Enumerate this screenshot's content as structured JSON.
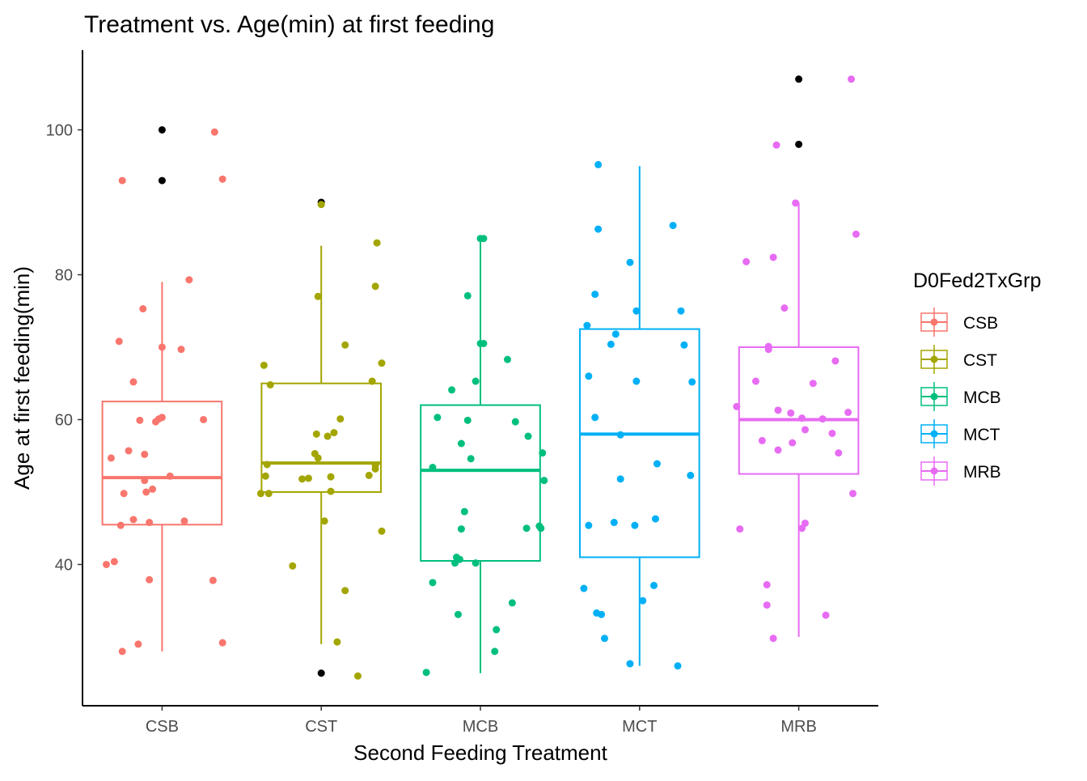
{
  "chart_data": {
    "type": "boxplot",
    "title": "Treatment vs. Age(min) at first feeding",
    "xlabel": "Second Feeding Treatment",
    "ylabel": "Age at first feeding(min)",
    "ylim": [
      20.5,
      111
    ],
    "yticks": [
      40,
      60,
      80,
      100
    ],
    "grid": false,
    "legend": {
      "title": "D0Fed2TxGrp",
      "placement": "right",
      "entries": [
        "CSB",
        "CST",
        "MCB",
        "MCT",
        "MRB"
      ]
    },
    "outlier_color": "#000000",
    "categories": [
      "CSB",
      "CST",
      "MCB",
      "MCT",
      "MRB"
    ],
    "series": [
      {
        "name": "CSB",
        "color": "#F8766D",
        "box": {
          "lower_whisker": 28,
          "q1": 45.5,
          "median": 52,
          "q3": 62.5,
          "upper_whisker": 79
        },
        "outliers": [
          93,
          100
        ],
        "points": [
          {
            "jitter": -0.25,
            "y": 93
          },
          {
            "jitter": -0.12,
            "y": 75.3
          },
          {
            "jitter": 0.17,
            "y": 79.3
          },
          {
            "jitter": -0.27,
            "y": 70.8
          },
          {
            "jitter": 0.0,
            "y": 70.0
          },
          {
            "jitter": 0.12,
            "y": 69.7
          },
          {
            "jitter": -0.18,
            "y": 65.2
          },
          {
            "jitter": -0.14,
            "y": 59.9
          },
          {
            "jitter": -0.04,
            "y": 59.7
          },
          {
            "jitter": -0.02,
            "y": 60.1
          },
          {
            "jitter": 0.0,
            "y": 60.3
          },
          {
            "jitter": 0.26,
            "y": 60.0
          },
          {
            "jitter": -0.21,
            "y": 55.7
          },
          {
            "jitter": -0.11,
            "y": 55.2
          },
          {
            "jitter": -0.32,
            "y": 54.7
          },
          {
            "jitter": 0.05,
            "y": 52.2
          },
          {
            "jitter": -0.11,
            "y": 51.6
          },
          {
            "jitter": -0.06,
            "y": 50.4
          },
          {
            "jitter": -0.1,
            "y": 50.0
          },
          {
            "jitter": -0.24,
            "y": 49.8
          },
          {
            "jitter": -0.18,
            "y": 46.2
          },
          {
            "jitter": -0.08,
            "y": 45.8
          },
          {
            "jitter": -0.26,
            "y": 45.4
          },
          {
            "jitter": 0.14,
            "y": 46.0
          },
          {
            "jitter": -0.3,
            "y": 40.4
          },
          {
            "jitter": -0.35,
            "y": 40.0
          },
          {
            "jitter": -0.08,
            "y": 37.9
          },
          {
            "jitter": 0.32,
            "y": 37.8
          },
          {
            "jitter": -0.15,
            "y": 29.0
          },
          {
            "jitter": 0.38,
            "y": 29.2
          },
          {
            "jitter": -0.25,
            "y": 28.0
          },
          {
            "jitter": 0.38,
            "y": 93.2
          },
          {
            "jitter": 0.33,
            "y": 99.7
          }
        ]
      },
      {
        "name": "CST",
        "color": "#A3A500",
        "box": {
          "lower_whisker": 29,
          "q1": 50,
          "median": 54,
          "q3": 65,
          "upper_whisker": 84
        },
        "outliers": [
          25,
          90
        ],
        "points": [
          {
            "jitter": 0.0,
            "y": 89.7
          },
          {
            "jitter": 0.35,
            "y": 84.4
          },
          {
            "jitter": 0.34,
            "y": 78.4
          },
          {
            "jitter": -0.02,
            "y": 77.0
          },
          {
            "jitter": 0.15,
            "y": 70.3
          },
          {
            "jitter": -0.36,
            "y": 67.5
          },
          {
            "jitter": 0.38,
            "y": 67.8
          },
          {
            "jitter": 0.32,
            "y": 65.3
          },
          {
            "jitter": -0.32,
            "y": 64.8
          },
          {
            "jitter": 0.12,
            "y": 60.1
          },
          {
            "jitter": -0.03,
            "y": 58.0
          },
          {
            "jitter": 0.04,
            "y": 57.7
          },
          {
            "jitter": 0.08,
            "y": 58.2
          },
          {
            "jitter": -0.04,
            "y": 55.3
          },
          {
            "jitter": -0.02,
            "y": 54.7
          },
          {
            "jitter": -0.34,
            "y": 53.8
          },
          {
            "jitter": 0.34,
            "y": 53.7
          },
          {
            "jitter": 0.34,
            "y": 53.2
          },
          {
            "jitter": -0.35,
            "y": 52.2
          },
          {
            "jitter": -0.12,
            "y": 51.8
          },
          {
            "jitter": -0.08,
            "y": 51.9
          },
          {
            "jitter": 0.06,
            "y": 52.1
          },
          {
            "jitter": 0.3,
            "y": 52.3
          },
          {
            "jitter": -0.38,
            "y": 49.8
          },
          {
            "jitter": -0.33,
            "y": 49.8
          },
          {
            "jitter": 0.06,
            "y": 50.1
          },
          {
            "jitter": 0.02,
            "y": 46.0
          },
          {
            "jitter": 0.38,
            "y": 44.6
          },
          {
            "jitter": -0.18,
            "y": 39.8
          },
          {
            "jitter": 0.15,
            "y": 36.4
          },
          {
            "jitter": 0.1,
            "y": 29.3
          },
          {
            "jitter": 0.23,
            "y": 24.6
          }
        ]
      },
      {
        "name": "MCB",
        "color": "#00BF7D",
        "box": {
          "lower_whisker": 25,
          "q1": 40.5,
          "median": 53,
          "q3": 62,
          "upper_whisker": 85
        },
        "outliers": [],
        "points": [
          {
            "jitter": 0.0,
            "y": 85.0
          },
          {
            "jitter": 0.02,
            "y": 85.0
          },
          {
            "jitter": -0.08,
            "y": 77.1
          },
          {
            "jitter": 0.0,
            "y": 70.5
          },
          {
            "jitter": 0.02,
            "y": 70.5
          },
          {
            "jitter": 0.17,
            "y": 68.3
          },
          {
            "jitter": -0.03,
            "y": 65.3
          },
          {
            "jitter": -0.18,
            "y": 64.1
          },
          {
            "jitter": -0.27,
            "y": 60.3
          },
          {
            "jitter": -0.08,
            "y": 59.9
          },
          {
            "jitter": 0.22,
            "y": 59.7
          },
          {
            "jitter": 0.3,
            "y": 57.7
          },
          {
            "jitter": -0.12,
            "y": 56.7
          },
          {
            "jitter": -0.06,
            "y": 54.6
          },
          {
            "jitter": 0.39,
            "y": 55.4
          },
          {
            "jitter": -0.3,
            "y": 53.4
          },
          {
            "jitter": 0.4,
            "y": 51.6
          },
          {
            "jitter": -0.1,
            "y": 47.3
          },
          {
            "jitter": 0.37,
            "y": 45.3
          },
          {
            "jitter": 0.38,
            "y": 45.0
          },
          {
            "jitter": 0.29,
            "y": 45.0
          },
          {
            "jitter": -0.12,
            "y": 44.9
          },
          {
            "jitter": -0.15,
            "y": 41.0
          },
          {
            "jitter": -0.13,
            "y": 40.7
          },
          {
            "jitter": -0.16,
            "y": 40.2
          },
          {
            "jitter": -0.03,
            "y": 40.2
          },
          {
            "jitter": -0.3,
            "y": 37.5
          },
          {
            "jitter": 0.2,
            "y": 34.7
          },
          {
            "jitter": -0.14,
            "y": 33.1
          },
          {
            "jitter": 0.1,
            "y": 31.0
          },
          {
            "jitter": 0.09,
            "y": 28.0
          },
          {
            "jitter": -0.34,
            "y": 25.1
          }
        ]
      },
      {
        "name": "MCT",
        "color": "#00B0F6",
        "box": {
          "lower_whisker": 26,
          "q1": 41,
          "median": 58,
          "q3": 72.5,
          "upper_whisker": 95
        },
        "outliers": [],
        "points": [
          {
            "jitter": -0.26,
            "y": 95.2
          },
          {
            "jitter": -0.26,
            "y": 86.3
          },
          {
            "jitter": 0.21,
            "y": 86.8
          },
          {
            "jitter": -0.06,
            "y": 81.7
          },
          {
            "jitter": -0.28,
            "y": 77.3
          },
          {
            "jitter": -0.02,
            "y": 75.0
          },
          {
            "jitter": 0.26,
            "y": 75.0
          },
          {
            "jitter": -0.33,
            "y": 73.0
          },
          {
            "jitter": -0.15,
            "y": 71.8
          },
          {
            "jitter": -0.18,
            "y": 70.4
          },
          {
            "jitter": 0.28,
            "y": 70.3
          },
          {
            "jitter": -0.32,
            "y": 66.0
          },
          {
            "jitter": -0.02,
            "y": 65.3
          },
          {
            "jitter": 0.33,
            "y": 65.2
          },
          {
            "jitter": -0.28,
            "y": 60.3
          },
          {
            "jitter": -0.12,
            "y": 57.9
          },
          {
            "jitter": 0.11,
            "y": 53.9
          },
          {
            "jitter": 0.32,
            "y": 52.3
          },
          {
            "jitter": -0.12,
            "y": 51.8
          },
          {
            "jitter": 0.1,
            "y": 46.3
          },
          {
            "jitter": -0.16,
            "y": 45.8
          },
          {
            "jitter": -0.03,
            "y": 45.4
          },
          {
            "jitter": -0.32,
            "y": 45.4
          },
          {
            "jitter": 0.09,
            "y": 37.1
          },
          {
            "jitter": -0.35,
            "y": 36.7
          },
          {
            "jitter": -0.27,
            "y": 33.3
          },
          {
            "jitter": -0.24,
            "y": 33.1
          },
          {
            "jitter": 0.02,
            "y": 35.0
          },
          {
            "jitter": -0.22,
            "y": 29.8
          },
          {
            "jitter": -0.06,
            "y": 26.3
          },
          {
            "jitter": 0.24,
            "y": 26.0
          }
        ]
      },
      {
        "name": "MRB",
        "color": "#E76BF3",
        "box": {
          "lower_whisker": 30,
          "q1": 52.5,
          "median": 60,
          "q3": 70,
          "upper_whisker": 90
        },
        "outliers": [
          98,
          107
        ],
        "points": [
          {
            "jitter": 0.33,
            "y": 107.0
          },
          {
            "jitter": -0.14,
            "y": 97.9
          },
          {
            "jitter": -0.02,
            "y": 89.9
          },
          {
            "jitter": 0.36,
            "y": 85.6
          },
          {
            "jitter": -0.33,
            "y": 81.8
          },
          {
            "jitter": -0.16,
            "y": 82.4
          },
          {
            "jitter": -0.09,
            "y": 75.4
          },
          {
            "jitter": -0.19,
            "y": 70.1
          },
          {
            "jitter": -0.19,
            "y": 69.7
          },
          {
            "jitter": -0.27,
            "y": 65.3
          },
          {
            "jitter": 0.09,
            "y": 65.0
          },
          {
            "jitter": 0.23,
            "y": 68.1
          },
          {
            "jitter": -0.39,
            "y": 61.8
          },
          {
            "jitter": -0.13,
            "y": 61.3
          },
          {
            "jitter": -0.05,
            "y": 60.9
          },
          {
            "jitter": 0.02,
            "y": 60.2
          },
          {
            "jitter": 0.15,
            "y": 60.1
          },
          {
            "jitter": 0.31,
            "y": 61.0
          },
          {
            "jitter": -0.23,
            "y": 57.1
          },
          {
            "jitter": -0.04,
            "y": 56.8
          },
          {
            "jitter": 0.04,
            "y": 58.6
          },
          {
            "jitter": 0.21,
            "y": 58.1
          },
          {
            "jitter": -0.13,
            "y": 55.8
          },
          {
            "jitter": 0.25,
            "y": 55.4
          },
          {
            "jitter": 0.34,
            "y": 49.8
          },
          {
            "jitter": -0.37,
            "y": 44.9
          },
          {
            "jitter": 0.02,
            "y": 45.0
          },
          {
            "jitter": 0.04,
            "y": 45.7
          },
          {
            "jitter": -0.2,
            "y": 37.2
          },
          {
            "jitter": -0.2,
            "y": 34.4
          },
          {
            "jitter": 0.17,
            "y": 33.0
          },
          {
            "jitter": -0.16,
            "y": 29.8
          }
        ]
      }
    ]
  }
}
